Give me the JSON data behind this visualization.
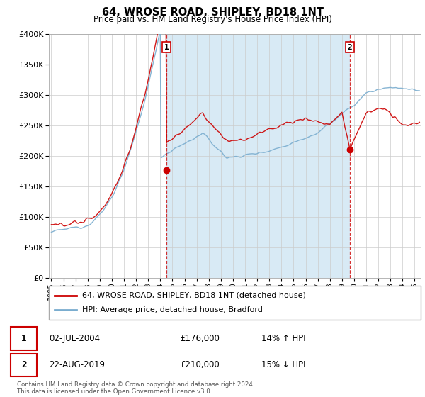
{
  "title": "64, WROSE ROAD, SHIPLEY, BD18 1NT",
  "subtitle": "Price paid vs. HM Land Registry's House Price Index (HPI)",
  "ylim": [
    0,
    400000
  ],
  "xlim_start": 1994.8,
  "xlim_end": 2025.5,
  "legend_line1": "64, WROSE ROAD, SHIPLEY, BD18 1NT (detached house)",
  "legend_line2": "HPI: Average price, detached house, Bradford",
  "marker1_label": "1",
  "marker1_date": "02-JUL-2004",
  "marker1_price": "£176,000",
  "marker1_hpi": "14% ↑ HPI",
  "marker1_x": 2004.5,
  "marker1_y": 176000,
  "marker2_label": "2",
  "marker2_date": "22-AUG-2019",
  "marker2_price": "£210,000",
  "marker2_hpi": "15% ↓ HPI",
  "marker2_x": 2019.65,
  "marker2_y": 210000,
  "footer": "Contains HM Land Registry data © Crown copyright and database right 2024.\nThis data is licensed under the Open Government Licence v3.0.",
  "line_color_red": "#cc0000",
  "line_color_blue": "#7aadcf",
  "shade_color": "#d8eaf5",
  "background_color": "#ffffff",
  "grid_color": "#cccccc"
}
